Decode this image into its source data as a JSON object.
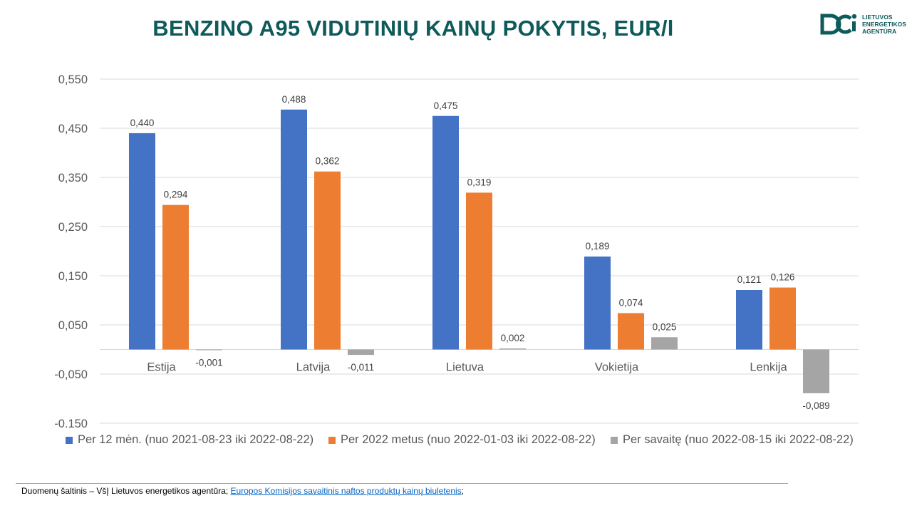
{
  "title": "BENZINO A95 VIDUTINIŲ KAINŲ POKYTIS, EUR/l",
  "logo": {
    "lines": [
      "LIETUVOS",
      "ENERGETIKOS",
      "AGENTŪRA"
    ],
    "color": "#0f5a5a"
  },
  "chart_data": {
    "type": "bar",
    "title": "BENZINO A95 VIDUTINIŲ KAINŲ POKYTIS, EUR/l",
    "categories": [
      "Estija",
      "Latvija",
      "Lietuva",
      "Vokietija",
      "Lenkija"
    ],
    "series": [
      {
        "name": "Per 12 mėn. (nuo 2021-08-23 iki 2022-08-22)",
        "color": "#4472c4",
        "values": [
          0.44,
          0.488,
          0.475,
          0.189,
          0.121
        ],
        "labels": [
          "0,440",
          "0,488",
          "0,475",
          "0,189",
          "0,121"
        ]
      },
      {
        "name": "Per 2022 metus (nuo 2022-01-03 iki 2022-08-22)",
        "color": "#ed7d31",
        "values": [
          0.294,
          0.362,
          0.319,
          0.074,
          0.126
        ],
        "labels": [
          "0,294",
          "0,362",
          "0,319",
          "0,074",
          "0,126"
        ]
      },
      {
        "name": "Per savaitę (nuo 2022-08-15 iki 2022-08-22)",
        "color": "#a5a5a5",
        "values": [
          -0.001,
          -0.011,
          0.002,
          0.025,
          -0.089
        ],
        "labels": [
          "-0,001",
          "-0,011",
          "0,002",
          "0,025",
          "-0,089"
        ]
      }
    ],
    "ylim": [
      -0.15,
      0.55
    ],
    "yticks": [
      -0.15,
      -0.05,
      0.05,
      0.15,
      0.25,
      0.35,
      0.45,
      0.55
    ],
    "ytick_labels": [
      "-0,150",
      "-0,050",
      "0,050",
      "0,150",
      "0,250",
      "0,350",
      "0,450",
      "0,550"
    ],
    "grid": true,
    "legend_position": "bottom",
    "xlabel": "",
    "ylabel": ""
  },
  "footer": {
    "prefix": "Duomenų šaltinis – VšĮ Lietuvos energetikos agentūra; ",
    "link_text": "Europos Komisijos savaitinis naftos produktų kainų biuletenis",
    "suffix": ";"
  }
}
